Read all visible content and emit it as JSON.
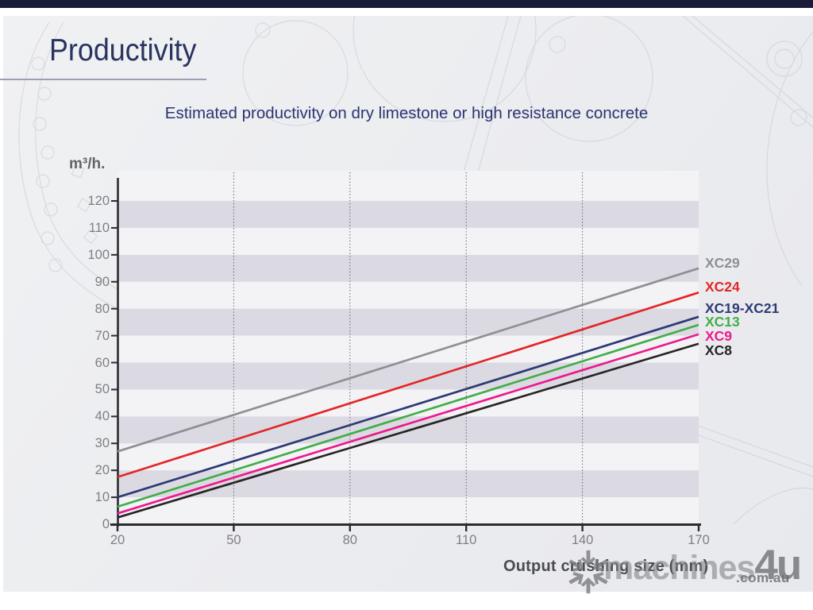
{
  "header": {
    "title": "Productivity"
  },
  "chart_data": {
    "type": "line",
    "title": "Estimated productivity on dry limestone or high resistance concrete",
    "xlabel": "Output crushing size (mm)",
    "ylabel": "m³/h.",
    "xlim": [
      20,
      170
    ],
    "ylim": [
      0,
      120
    ],
    "xticks": [
      20,
      50,
      80,
      110,
      140,
      170
    ],
    "yticks": [
      0,
      10,
      20,
      30,
      40,
      50,
      60,
      70,
      80,
      90,
      100,
      110,
      120
    ],
    "x": [
      20,
      170
    ],
    "series": [
      {
        "name": "XC29",
        "color": "#8f9093",
        "values": [
          27,
          95
        ]
      },
      {
        "name": "XC24",
        "color": "#e32726",
        "values": [
          17.5,
          86
        ]
      },
      {
        "name": "XC19-XC21",
        "color": "#2d3a74",
        "values": [
          10,
          77
        ]
      },
      {
        "name": "XC13",
        "color": "#43ad49",
        "values": [
          6.5,
          74
        ]
      },
      {
        "name": "XC9",
        "color": "#ec1a8d",
        "values": [
          4,
          70.5
        ]
      },
      {
        "name": "XC8",
        "color": "#292526",
        "values": [
          2.5,
          67
        ]
      }
    ],
    "band_color": "#dbdae3",
    "plot_background": "#f3f3f6",
    "grid": "dotted vertical lines at x = 50, 80, 110, 140",
    "legend_position": "right of plot, beside line ends"
  },
  "watermark": {
    "name": "machines",
    "suffix": "4u",
    "domain": ".com.au"
  },
  "colors": {
    "top_bar": "#191b3a",
    "title_text": "#29335f",
    "subtitle_text": "#2b3470",
    "axis": "#2c2c30",
    "tick_text": "#7e7f84",
    "slide_background": "#ebecef"
  }
}
